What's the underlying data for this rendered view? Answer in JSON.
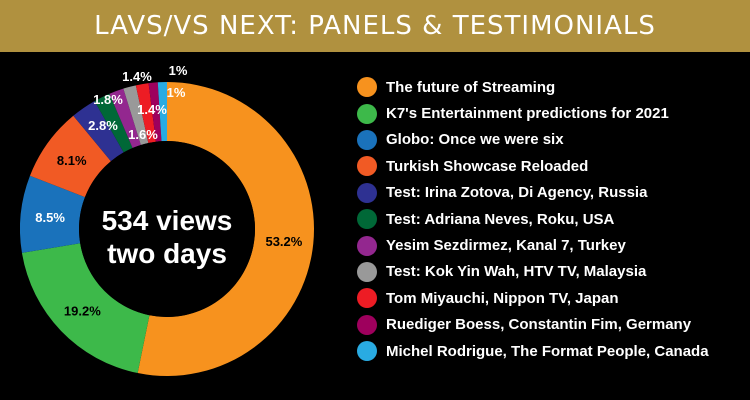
{
  "header": {
    "title": "LAVS/VS NEXT: PANELS & TESTIMONIALS"
  },
  "chart_data": {
    "type": "donut",
    "center_text": [
      "534 views",
      "two days"
    ],
    "slices": [
      {
        "label": "The future of Streaming",
        "value": 53.2,
        "display": "53.2%",
        "color": "#f7921e"
      },
      {
        "label": "K7's Entertainment predictions for 2021",
        "value": 19.2,
        "display": "19.2%",
        "color": "#3db94a"
      },
      {
        "label": "Globo: Once we were six",
        "value": 8.5,
        "display": "8.5%",
        "color": "#1a72bb"
      },
      {
        "label": "Turkish Showcase Reloaded",
        "value": 8.1,
        "display": "8.1%",
        "color": "#f15a24"
      },
      {
        "label": "Test: Irina Zotova, Di Agency, Russia",
        "value": 2.8,
        "display": "2.8%",
        "color": "#2e3192"
      },
      {
        "label": "Test: Adriana Neves, Roku, USA",
        "value": 1.8,
        "display": "1.8%",
        "color": "#006837"
      },
      {
        "label": "Yesim Sezdirmez, Kanal 7, Turkey",
        "value": 1.6,
        "display": "1.6%",
        "color": "#93278f"
      },
      {
        "label": "Test: Kok Yin Wah, HTV TV, Malaysia",
        "value": 1.4,
        "display": "1.4%",
        "color": "#999999"
      },
      {
        "label": "Tom Miyauchi, Nippon TV, Japan",
        "value": 1.4,
        "display": "1.4%",
        "color": "#ed1c24"
      },
      {
        "label": "Ruediger Boess, Constantin Fim, Germany",
        "value": 1.0,
        "display": "1%",
        "color": "#9e005d"
      },
      {
        "label": "Michel Rodrigue, The Format People, Canada",
        "value": 1.0,
        "display": "1%",
        "color": "#29abe2"
      }
    ]
  }
}
